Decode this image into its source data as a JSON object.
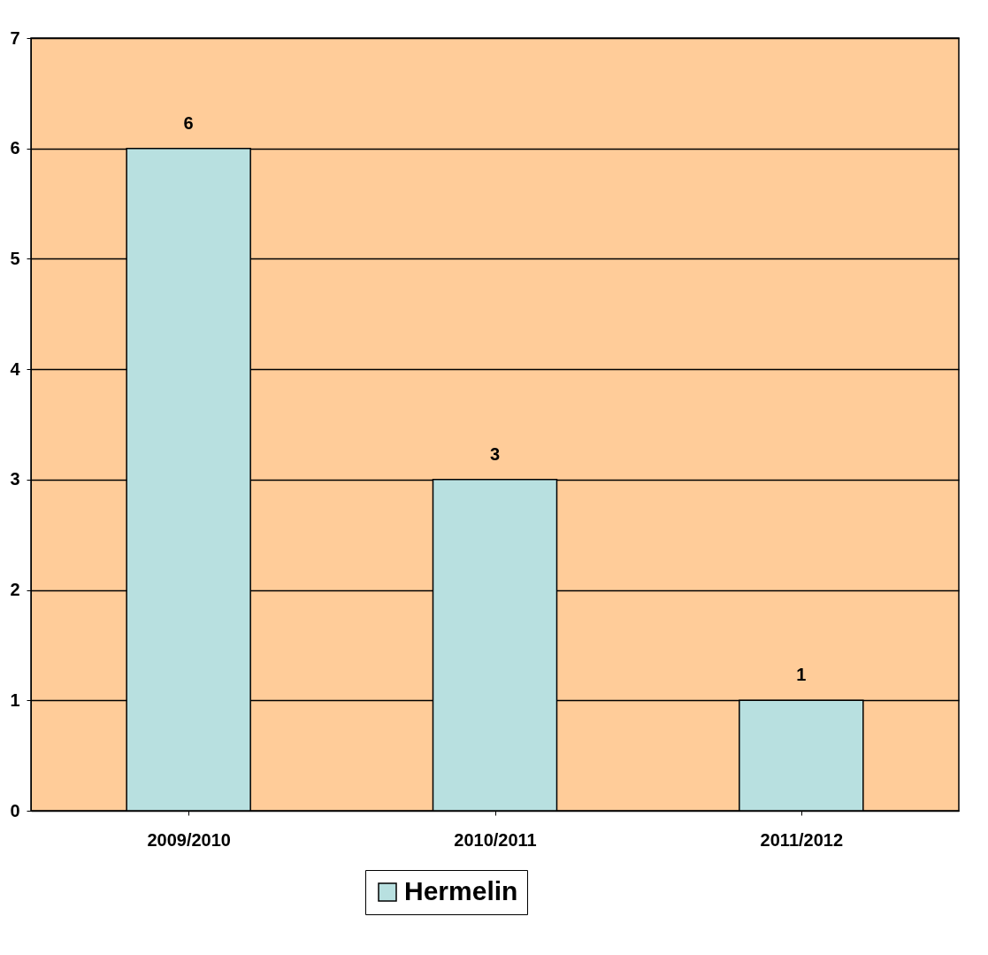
{
  "chart_data": {
    "type": "bar",
    "categories": [
      "2009/2010",
      "2010/2011",
      "2011/2012"
    ],
    "series": [
      {
        "name": "Hermelin",
        "color": "#b8e0e0",
        "values": [
          6,
          3,
          1
        ]
      }
    ],
    "ylim": [
      0,
      7
    ],
    "yticks": [
      0,
      1,
      2,
      3,
      4,
      5,
      6,
      7
    ],
    "grid": "y",
    "legend": "bottom",
    "data_labels": true
  }
}
